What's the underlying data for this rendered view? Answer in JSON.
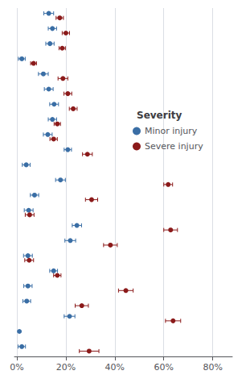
{
  "chart_data": {
    "type": "scatter",
    "orientation": "horizontal",
    "categories": [
      null,
      null,
      null,
      null,
      null,
      null,
      null,
      null,
      null,
      null,
      null,
      null,
      null,
      null,
      null,
      null,
      null,
      null,
      null,
      null,
      null,
      null,
      null
    ],
    "legend_title": "Severity",
    "series": [
      {
        "name": "Minor injury",
        "color": "#3a6ea5",
        "values": [
          0.13,
          0.145,
          0.135,
          0.02,
          0.108,
          0.13,
          0.152,
          0.145,
          0.126,
          0.208,
          0.038,
          0.178,
          0.072,
          0.048,
          0.245,
          0.218,
          0.045,
          0.15,
          0.045,
          0.04,
          0.215,
          0.01,
          0.02
        ],
        "error_low": [
          0.11,
          0.128,
          0.118,
          0.006,
          0.088,
          0.112,
          0.134,
          0.128,
          0.108,
          0.193,
          0.022,
          0.158,
          0.055,
          0.03,
          0.226,
          0.196,
          0.027,
          0.134,
          0.028,
          0.024,
          0.193,
          null,
          0.005
        ],
        "error_high": [
          0.15,
          0.162,
          0.152,
          0.034,
          0.128,
          0.148,
          0.17,
          0.162,
          0.144,
          0.223,
          0.054,
          0.198,
          0.089,
          0.066,
          0.264,
          0.24,
          0.063,
          0.166,
          0.062,
          0.056,
          0.237,
          null,
          0.035
        ]
      },
      {
        "name": "Severe injury",
        "color": "#8b1a1a",
        "values": [
          0.175,
          0.2,
          0.185,
          0.068,
          0.188,
          0.208,
          0.23,
          0.165,
          0.15,
          0.288,
          null,
          0.618,
          0.305,
          0.052,
          0.628,
          0.382,
          0.05,
          0.165,
          0.445,
          0.265,
          0.638,
          null,
          0.295
        ],
        "error_low": [
          0.16,
          0.185,
          0.172,
          0.056,
          0.168,
          0.192,
          0.214,
          0.152,
          0.135,
          0.268,
          null,
          0.6,
          0.28,
          0.034,
          0.6,
          0.354,
          0.032,
          0.15,
          0.415,
          0.238,
          0.607,
          null,
          0.255
        ],
        "error_high": [
          0.19,
          0.215,
          0.198,
          0.08,
          0.208,
          0.224,
          0.246,
          0.178,
          0.165,
          0.308,
          null,
          0.636,
          0.33,
          0.07,
          0.656,
          0.41,
          0.068,
          0.18,
          0.475,
          0.292,
          0.669,
          null,
          0.335
        ]
      }
    ],
    "xlim": [
      -0.01,
      0.88
    ],
    "xticks": [
      {
        "value": 0.0,
        "label": "0%"
      },
      {
        "value": 0.2,
        "label": "20%"
      },
      {
        "value": 0.4,
        "label": "40%"
      },
      {
        "value": 0.6,
        "label": "60%"
      },
      {
        "value": 0.8,
        "label": "80%"
      }
    ],
    "grid": true,
    "legend": "right",
    "tick_labels": "x"
  }
}
